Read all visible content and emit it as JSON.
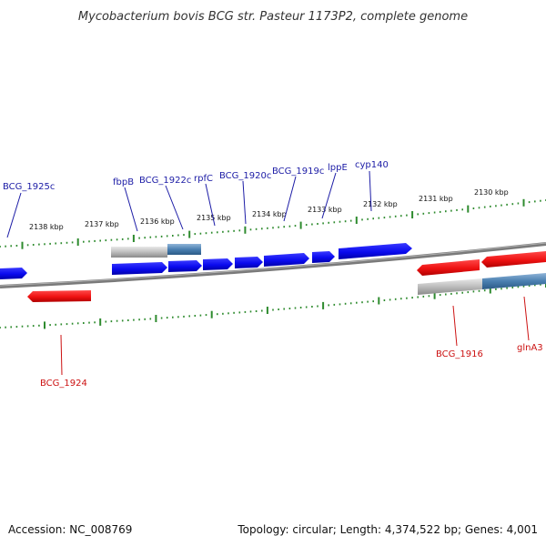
{
  "title": "Mycobacterium bovis BCG str. Pasteur 1173P2, complete genome",
  "accession": "Accession: NC_008769",
  "summary": "Topology: circular; Length: 4,374,522 bp; Genes: 4,001",
  "colors": {
    "forward": "#0a0aee",
    "reverse": "#ee1111",
    "forward_label": "#1c1ca6",
    "reverse_label": "#cc1111",
    "backbone": "#808080",
    "tick": "#2e8b2e"
  },
  "tick_labels": [
    "2138 kbp",
    "2137 kbp",
    "2136 kbp",
    "2135 kbp",
    "2134 kbp",
    "2133 kbp",
    "2132 kbp",
    "2131 kbp",
    "2130 kbp"
  ],
  "forward_labels": [
    "BCG_1925c",
    "fbpB",
    "BCG_1922c",
    "rpfC",
    "BCG_1920c",
    "BCG_1919c",
    "lppE",
    "cyp140"
  ],
  "reverse_labels": [
    "BCG_1924",
    "BCG_1916",
    "glnA3"
  ]
}
